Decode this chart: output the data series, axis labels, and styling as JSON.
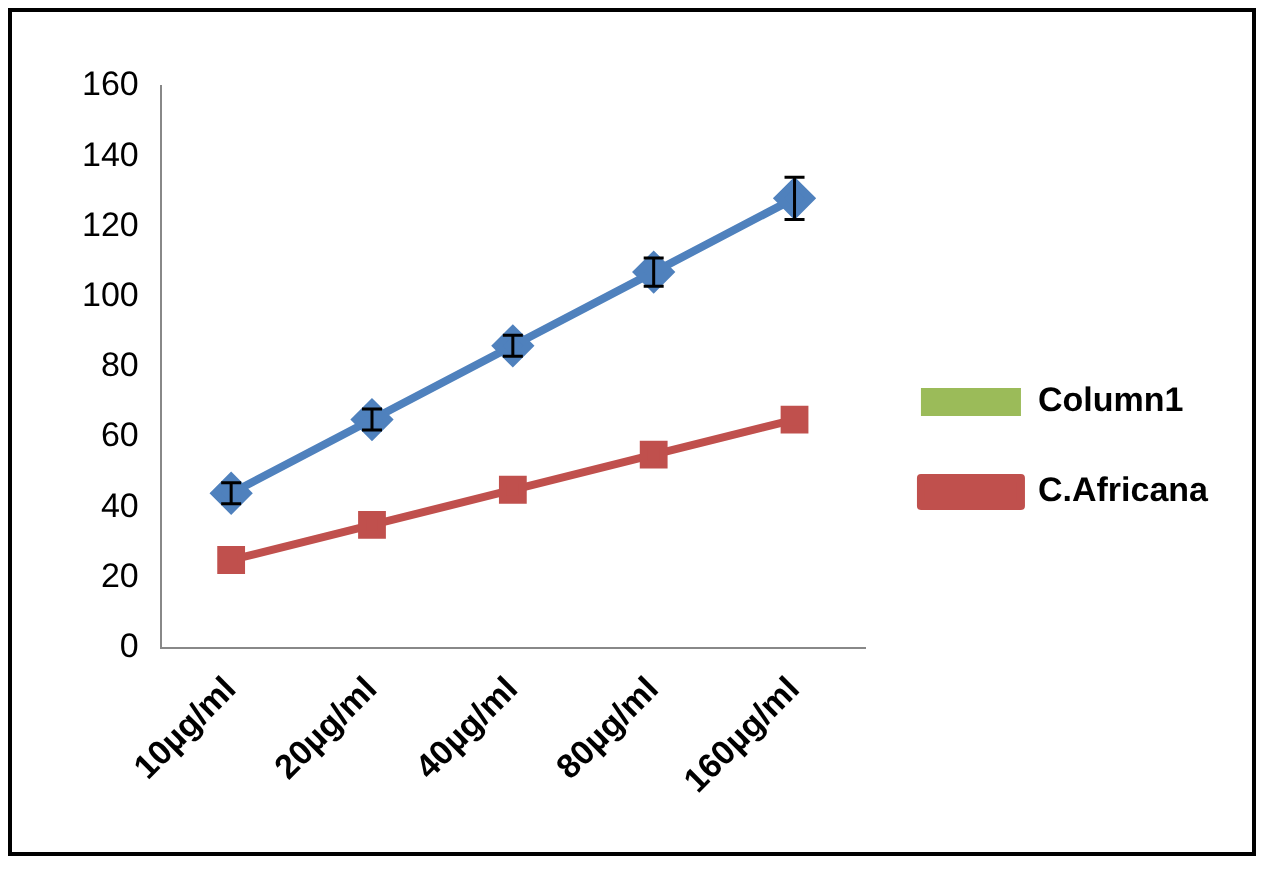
{
  "chart_data": {
    "type": "line",
    "categories": [
      "10µg/ml",
      "20µg/ml",
      "40µg/ml",
      "80µg/ml",
      "160µg/ml"
    ],
    "series": [
      {
        "color": "#4f81bd",
        "values": [
          44,
          65,
          86,
          107,
          128
        ],
        "errors": [
          3,
          3,
          3,
          4,
          6
        ],
        "marker": "diamond"
      },
      {
        "name": "Column1",
        "type": "bar",
        "color": "#9bbb59",
        "values": [
          null,
          null,
          null,
          null,
          null
        ]
      },
      {
        "name": "C.Africana",
        "color": "#c0504d",
        "values": [
          25,
          35,
          45,
          55,
          65
        ],
        "marker": "square"
      }
    ],
    "ylim": [
      0,
      160
    ],
    "yticks": [
      0,
      20,
      40,
      60,
      80,
      100,
      120,
      140,
      160
    ],
    "grid": false,
    "legend": "right"
  }
}
